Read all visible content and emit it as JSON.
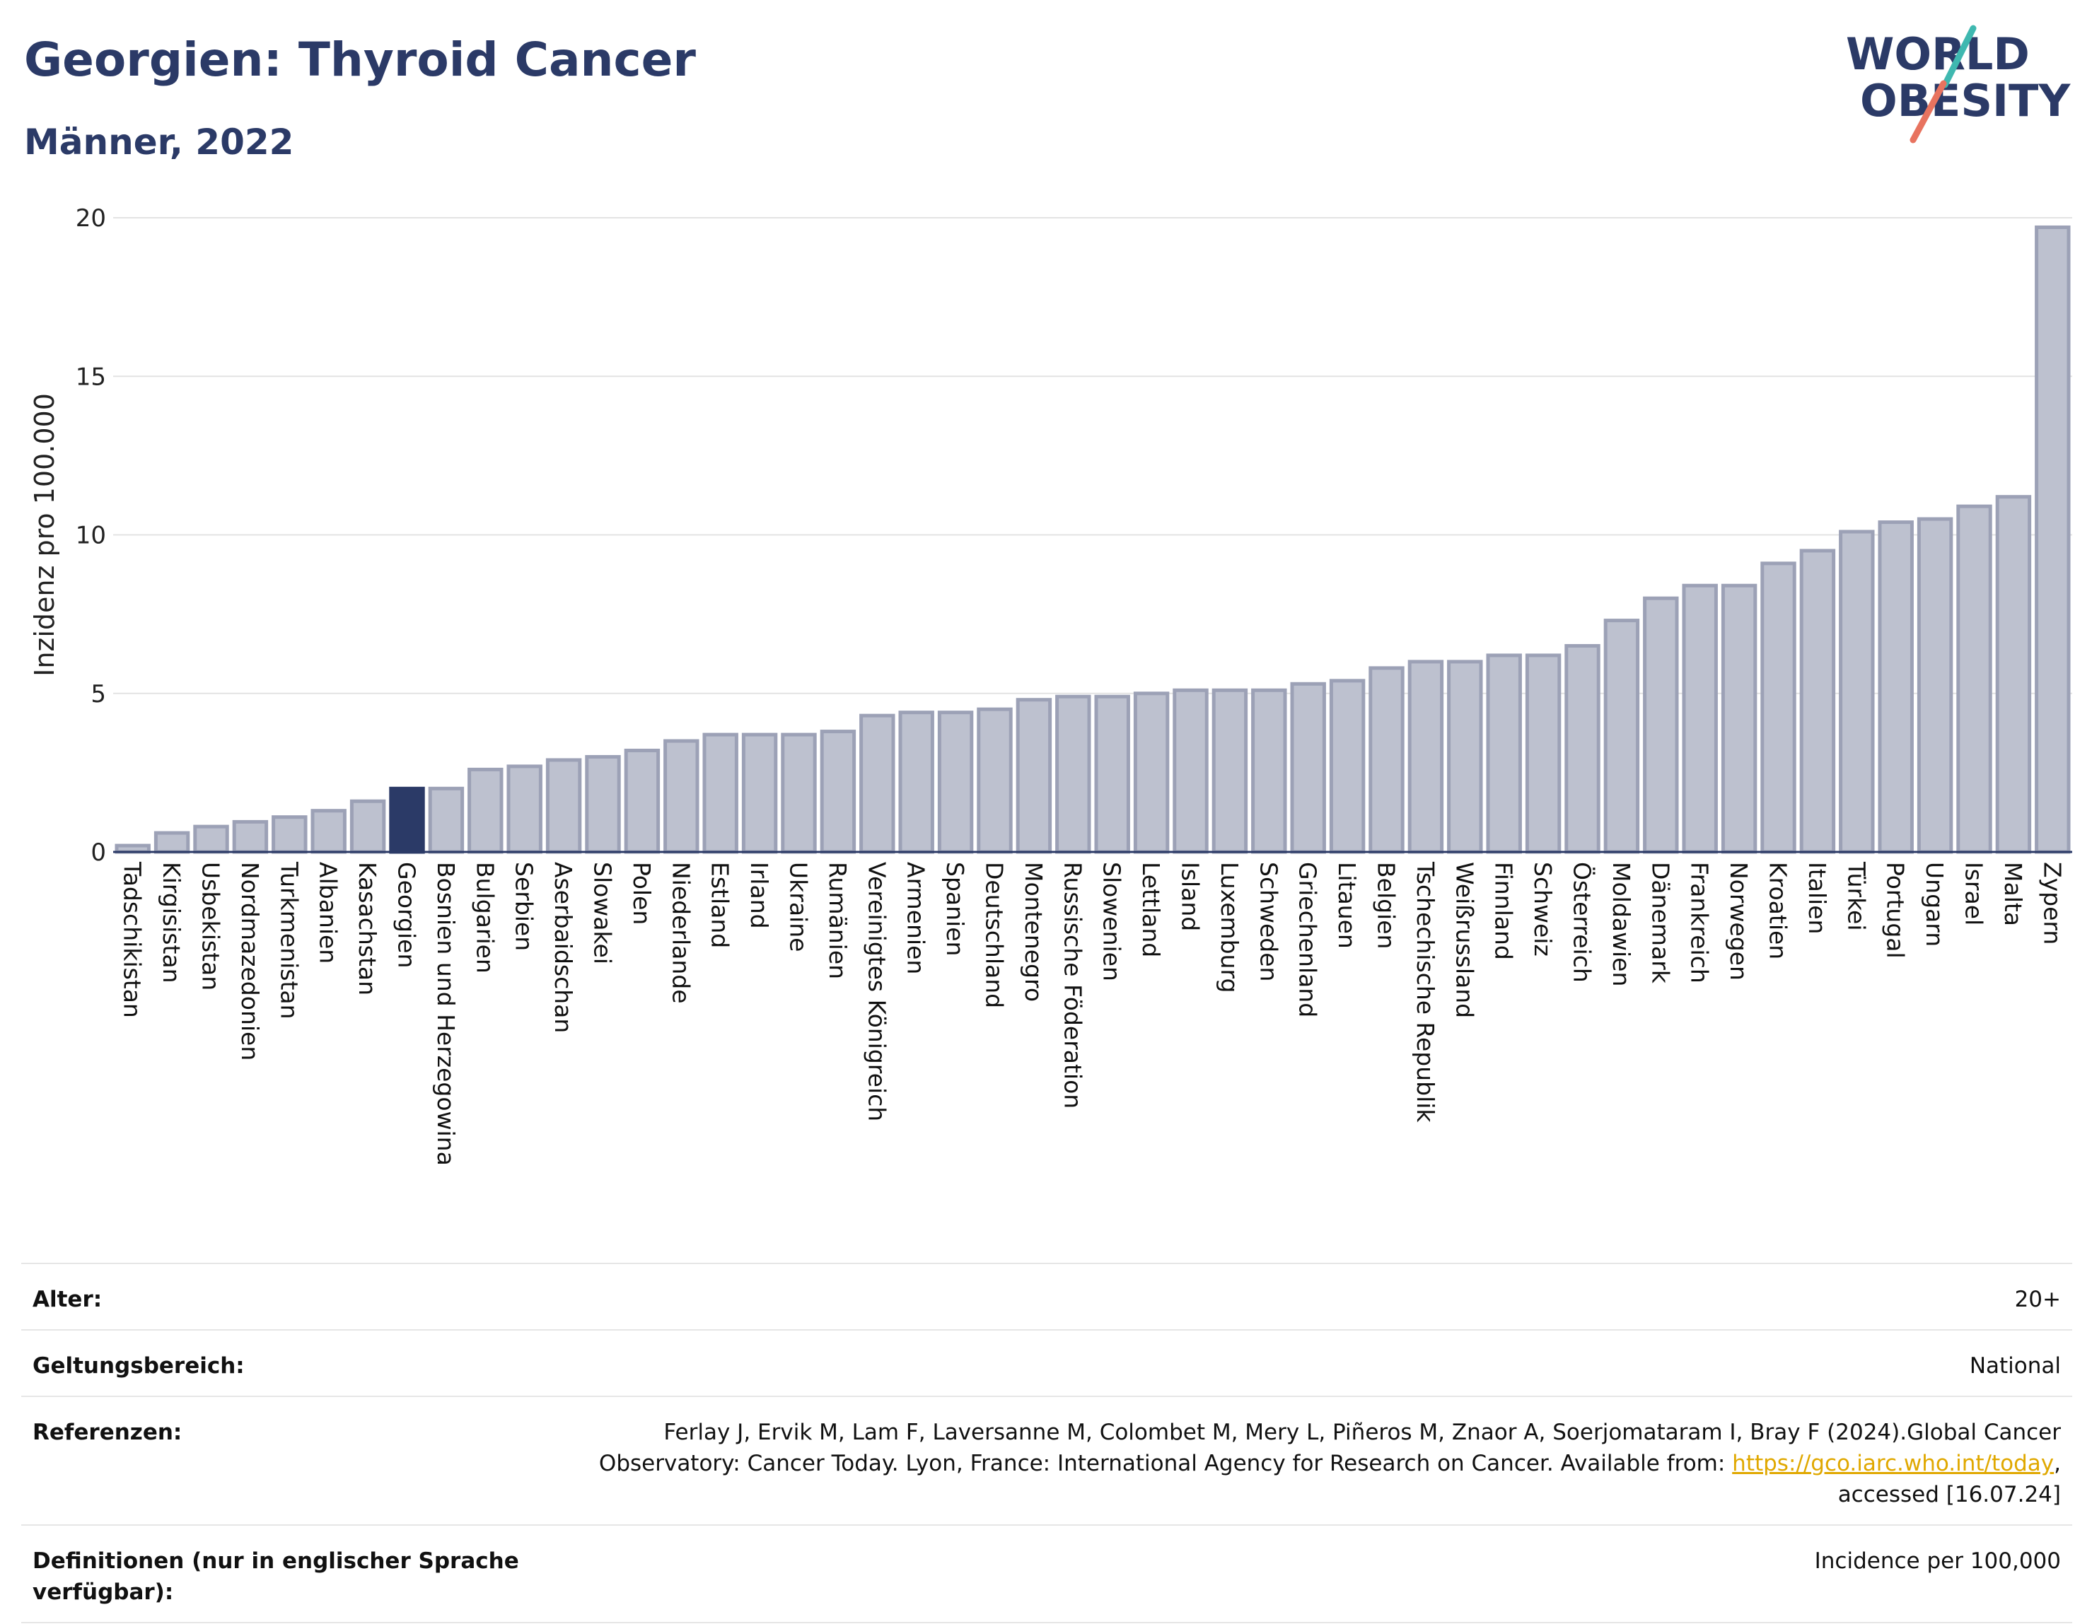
{
  "header": {
    "title": "Georgien: Thyroid Cancer",
    "subtitle": "Männer, 2022"
  },
  "logo": {
    "line1": "WORLD",
    "line2": "OBESITY"
  },
  "chart_data": {
    "type": "bar",
    "ylabel": "Inzidenz pro 100.000",
    "ylim": [
      0,
      20
    ],
    "yticks": [
      0,
      5,
      10,
      15,
      20
    ],
    "grid": true,
    "highlight": "Georgien",
    "categories": [
      "Tadschikistan",
      "Kirgisistan",
      "Usbekistan",
      "Nordmazedonien",
      "Turkmenistan",
      "Albanien",
      "Kasachstan",
      "Georgien",
      "Bosnien und Herzegowina",
      "Bulgarien",
      "Serbien",
      "Aserbaidschan",
      "Slowakei",
      "Polen",
      "Niederlande",
      "Estland",
      "Irland",
      "Ukraine",
      "Rumänien",
      "Vereinigtes Königreich",
      "Armenien",
      "Spanien",
      "Deutschland",
      "Montenegro",
      "Russische Föderation",
      "Slowenien",
      "Lettland",
      "Island",
      "Luxemburg",
      "Schweden",
      "Griechenland",
      "Litauen",
      "Belgien",
      "Tschechische Republik",
      "Weißrussland",
      "Finnland",
      "Schweiz",
      "Österreich",
      "Moldawien",
      "Dänemark",
      "Frankreich",
      "Norwegen",
      "Kroatien",
      "Italien",
      "Türkei",
      "Portugal",
      "Ungarn",
      "Israel",
      "Malta",
      "Zypern"
    ],
    "values": [
      0.2,
      0.6,
      0.8,
      0.95,
      1.1,
      1.3,
      1.6,
      2.0,
      2.0,
      2.6,
      2.7,
      2.9,
      3.0,
      3.2,
      3.5,
      3.7,
      3.7,
      3.7,
      3.8,
      4.3,
      4.4,
      4.4,
      4.5,
      4.8,
      4.9,
      4.9,
      5.0,
      5.1,
      5.1,
      5.1,
      5.3,
      5.4,
      5.8,
      6.0,
      6.0,
      6.2,
      6.2,
      6.5,
      7.3,
      8.0,
      8.4,
      8.4,
      9.1,
      9.5,
      10.1,
      10.4,
      10.5,
      10.9,
      11.2,
      19.7
    ],
    "colors": {
      "bar": "#bdc1cf",
      "bar_border": "#9ca1b6",
      "highlight": "#2b3a67",
      "axis": "#2b3a67",
      "grid": "#e3e3e3"
    }
  },
  "meta": {
    "rows": [
      {
        "key": "Alter:",
        "value": "20+"
      },
      {
        "key": "Geltungsbereich:",
        "value": "National"
      },
      {
        "key": "Referenzen:",
        "value_before": "Ferlay J, Ervik M, Lam F, Laversanne M, Colombet M, Mery L, Piñeros M, Znaor A, Soerjomataram I, Bray F (2024).Global Cancer Observatory: Cancer Today. Lyon, France: International Agency for Research on Cancer. Available from: ",
        "link": "https://gco.iarc.who.int/today",
        "value_after": ", accessed [16.07.24]"
      },
      {
        "key": "Definitionen (nur in englischer Sprache verfügbar):",
        "value": "Incidence per 100,000"
      }
    ]
  }
}
